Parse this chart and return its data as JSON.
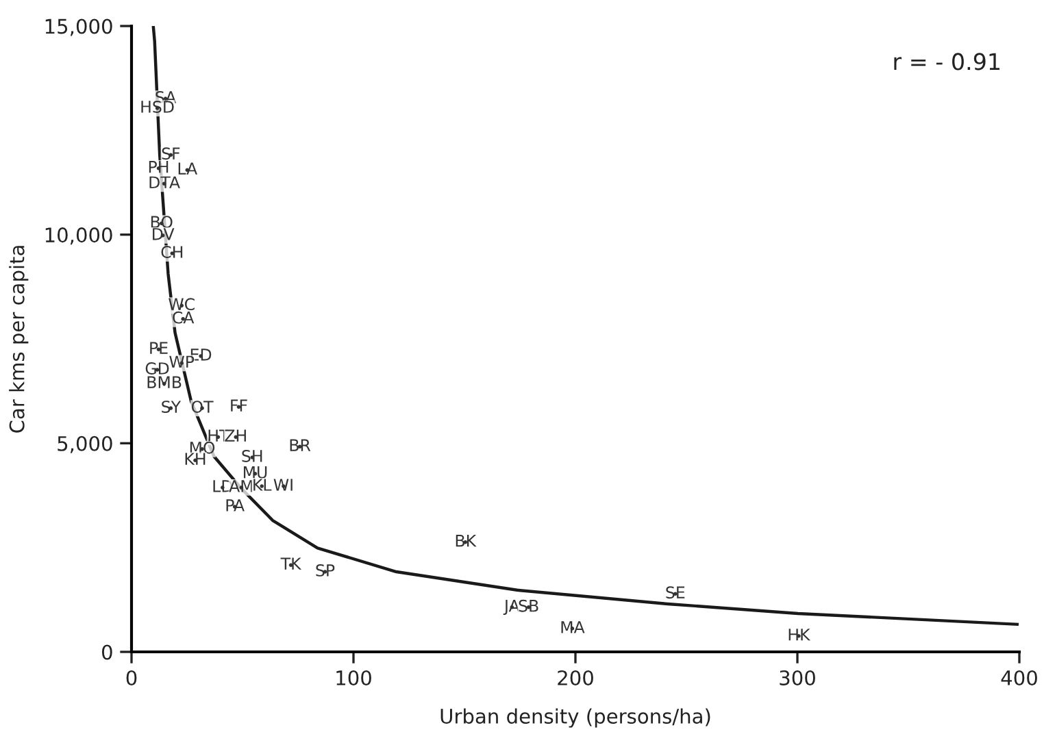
{
  "chart_data": {
    "type": "scatter",
    "xlabel": "Urban density (persons/ha)",
    "ylabel": "Car kms per capita",
    "xlim": [
      0,
      400
    ],
    "xticks": [
      0,
      100,
      200,
      300,
      400
    ],
    "ylim": [
      0,
      15000
    ],
    "yticks": [
      {
        "value": 0,
        "label": "0"
      },
      {
        "value": 5000,
        "label": "5,000"
      },
      {
        "value": 10000,
        "label": "10,000"
      },
      {
        "value": 15000,
        "label": "15,000"
      }
    ],
    "grid": false,
    "legend": false,
    "marker": "none",
    "line_style": "solid",
    "series": [
      {
        "type": "line",
        "color": "#1a1a1a",
        "x": [
          9.8,
          10.4,
          12.7,
          16.5,
          19.6,
          26.9,
          37.1,
          49.4,
          63.6,
          83.8,
          119.3,
          173.7,
          241.6,
          300.3,
          399
        ],
        "values": [
          15000,
          14640,
          11910,
          9060,
          7650,
          6000,
          4690,
          3920,
          3150,
          2490,
          1920,
          1480,
          1150,
          920,
          660
        ]
      },
      {
        "color": "#333333",
        "marker": "circle",
        "x": [
          15.3,
          11.6,
          17.7,
          12.2,
          25.1,
          14.7,
          13.5,
          14.1,
          18.3,
          22.6,
          23.2,
          12.2,
          31.2,
          22.6,
          11.6,
          14.7,
          17.7,
          31.8,
          48.3,
          39,
          47,
          31.8,
          28.7,
          54.4,
          75.8,
          55.7,
          41,
          49.5,
          58.7,
          68.5,
          46.5,
          150.4,
          71.8,
          87.2,
          245,
          171.4,
          178.9,
          198.6,
          300.6
        ],
        "values": [
          13260,
          13030,
          11910,
          11590,
          11550,
          11220,
          10270,
          9980,
          9550,
          8300,
          7980,
          7250,
          7090,
          6920,
          6760,
          6430,
          5840,
          5840,
          5870,
          5150,
          5150,
          4860,
          4590,
          4660,
          4920,
          4270,
          3940,
          3940,
          3970,
          3970,
          3480,
          2630,
          2080,
          1920,
          1390,
          1070,
          1070,
          560,
          380
        ],
        "value_labels": [
          "SA",
          "HSD",
          "SF",
          "PH",
          "LA",
          "DTA",
          "BO",
          "DV",
          "CH",
          "WC",
          "CA",
          "PE",
          "ED",
          "WP",
          "GD",
          "BMB",
          "SY",
          "OT",
          "FF",
          "HT",
          "ZH",
          "MO",
          "KH",
          "SH",
          "BR",
          "MU",
          "LD",
          "AM",
          "KL",
          "WI",
          "PA",
          "BK",
          "TK",
          "SP",
          "SE",
          "JA",
          "SB",
          "MA",
          "HK"
        ]
      }
    ],
    "annotations": [
      "r = - 0.91"
    ]
  }
}
